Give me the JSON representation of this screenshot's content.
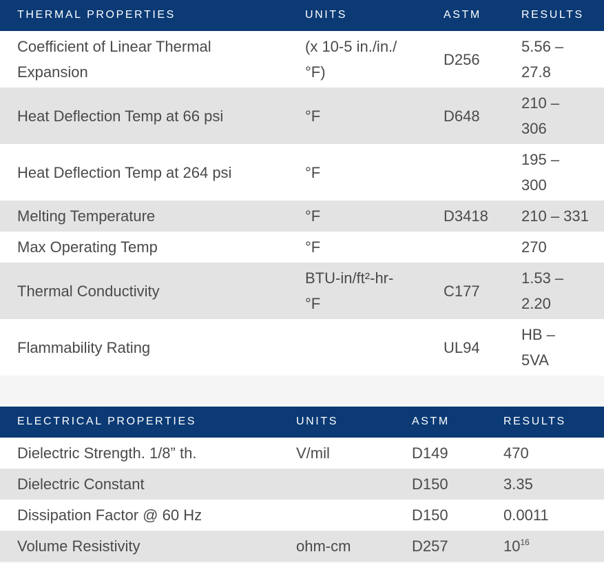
{
  "thermal": {
    "headers": [
      "THERMAL PROPERTIES",
      "UNITS",
      "ASTM",
      "RESULTS"
    ],
    "rows": [
      {
        "property": "Coefficient of Linear Thermal Expansion",
        "units": "(x 10-5 in./in./°F)",
        "astm": "D256",
        "results": "5.56 – 27.8"
      },
      {
        "property": "Heat Deflection Temp at 66 psi",
        "units": "°F",
        "astm": "D648",
        "results": "210 – 306"
      },
      {
        "property": "Heat Deflection Temp at 264 psi",
        "units": "°F",
        "astm": "",
        "results": "195 – 300"
      },
      {
        "property": "Melting Temperature",
        "units": "°F",
        "astm": "D3418",
        "results": "210 – 331"
      },
      {
        "property": "Max Operating Temp",
        "units": "°F",
        "astm": "",
        "results": "270"
      },
      {
        "property": "Thermal Conductivity",
        "units": "BTU-in/ft²-hr-°F",
        "astm": "C177",
        "results": "1.53 – 2.20"
      },
      {
        "property": "Flammability Rating",
        "units": "",
        "astm": "UL94",
        "results": "HB – 5VA"
      }
    ]
  },
  "electrical": {
    "headers": [
      "ELECTRICAL PROPERTIES",
      "UNITS",
      "ASTM",
      "RESULTS"
    ],
    "rows": [
      {
        "property": "Dielectric Strength. 1/8” th.",
        "units": "V/mil",
        "astm": "D149",
        "results": "470"
      },
      {
        "property": "Dielectric Constant",
        "units": "",
        "astm": "D150",
        "results": "3.35"
      },
      {
        "property": "Dissipation Factor @ 60 Hz",
        "units": "",
        "astm": "D150",
        "results": "0.0011"
      },
      {
        "property": "Volume Resistivity",
        "units": "ohm-cm",
        "astm": "D257",
        "results": "10",
        "results_exponent": "16"
      }
    ]
  }
}
